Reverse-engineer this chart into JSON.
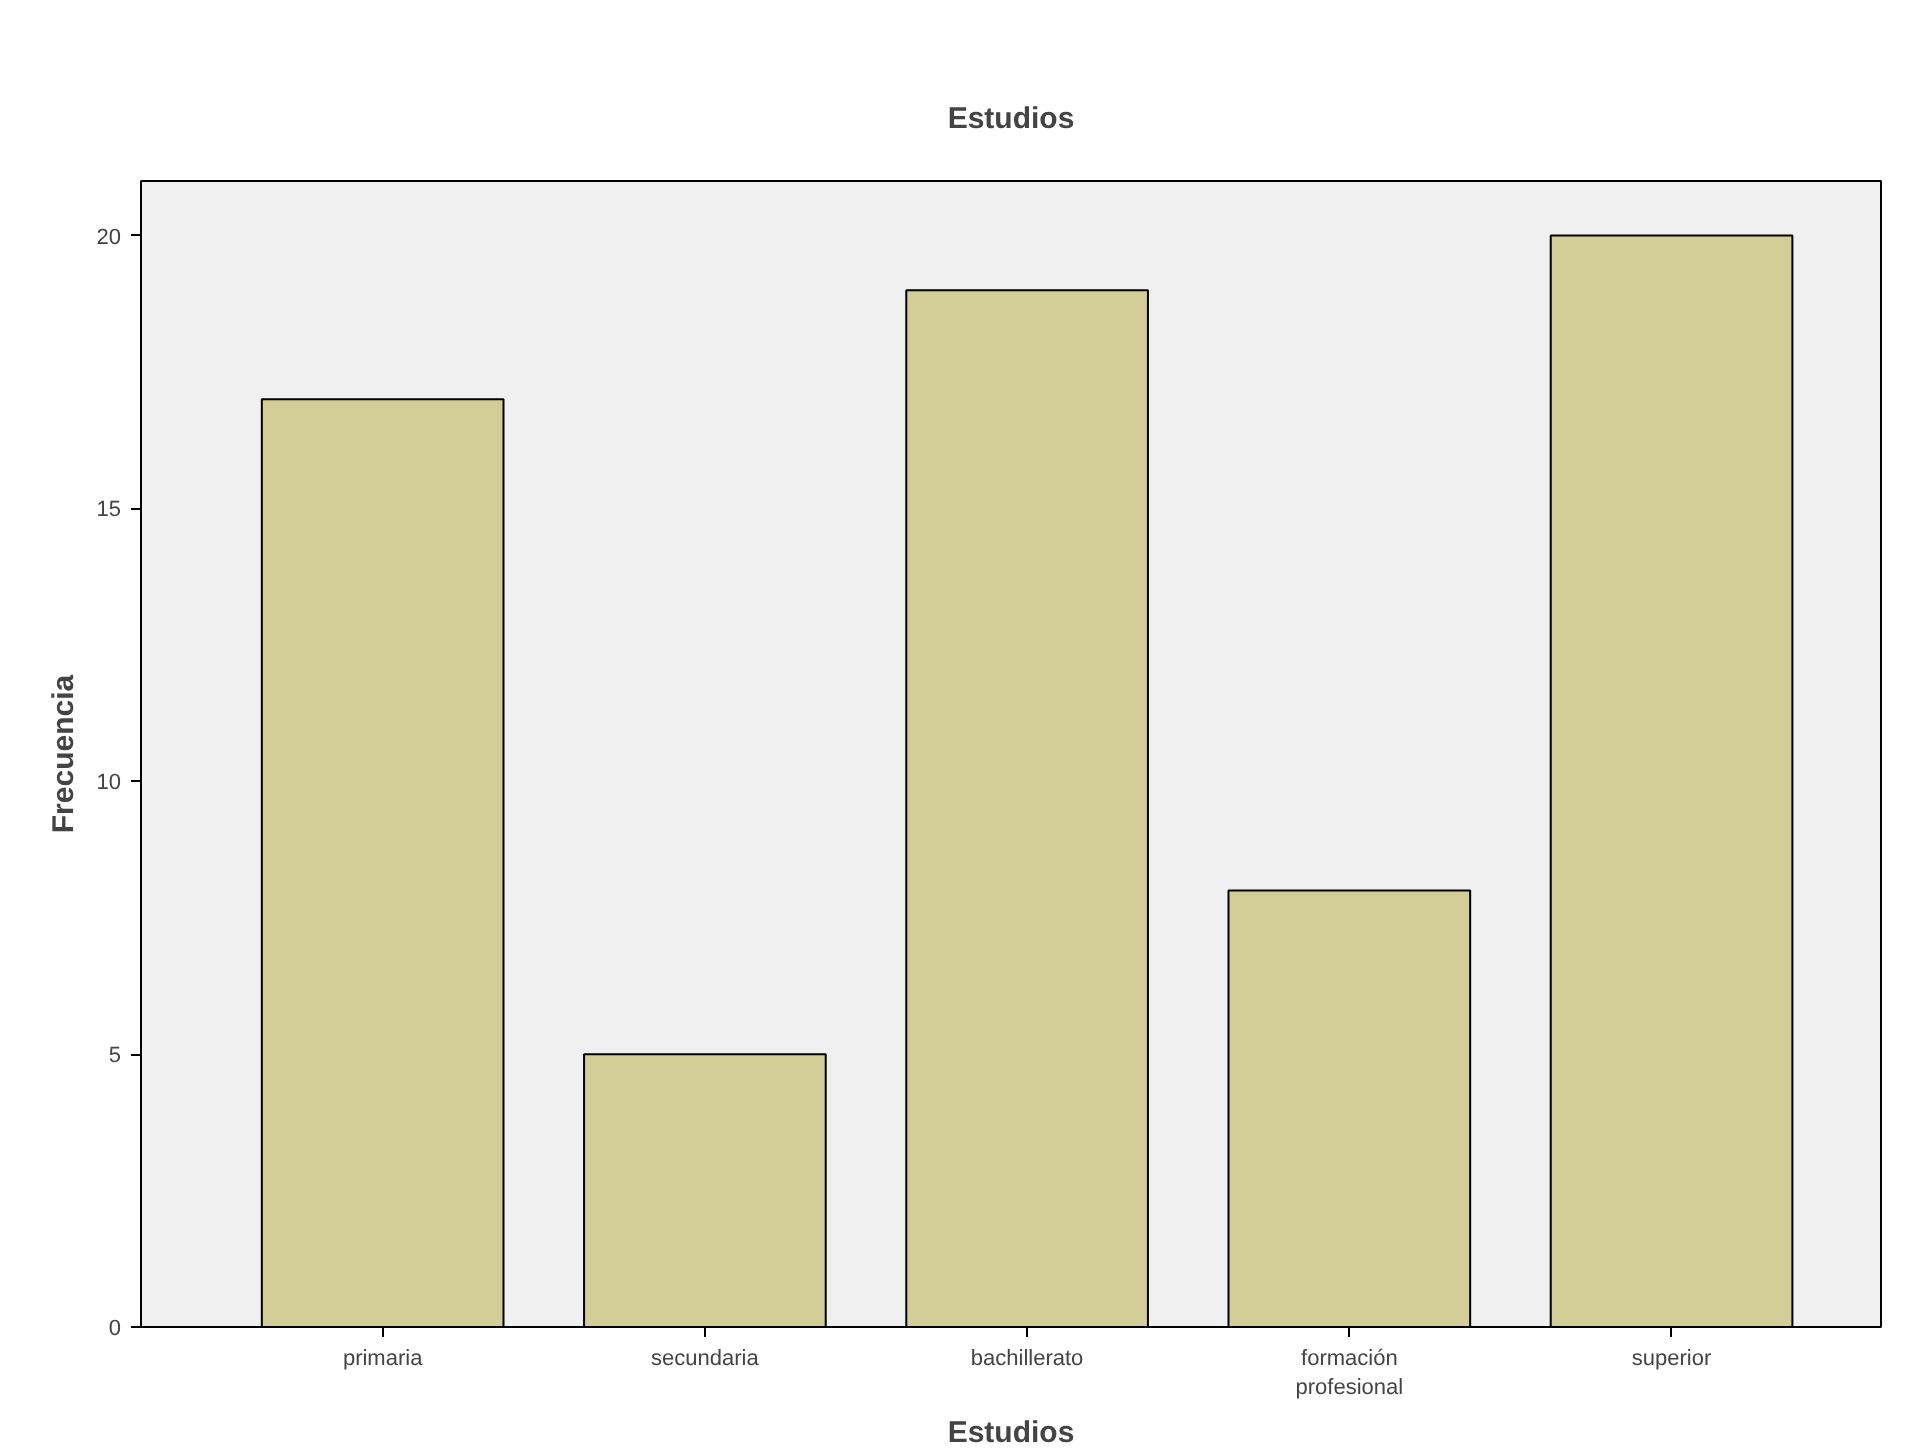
{
  "chart_data": {
    "type": "bar",
    "title": "Estudios",
    "xlabel": "Estudios",
    "ylabel": "Frecuencia",
    "categories": [
      "primaria",
      "secundaria",
      "bachillerato",
      "formación profesional",
      "superior"
    ],
    "values": [
      17,
      5,
      19,
      8,
      20
    ],
    "color": "#d3ce97",
    "ylim": [
      0,
      21
    ],
    "yticks": [
      0,
      5,
      10,
      15,
      20
    ],
    "grid": false
  }
}
